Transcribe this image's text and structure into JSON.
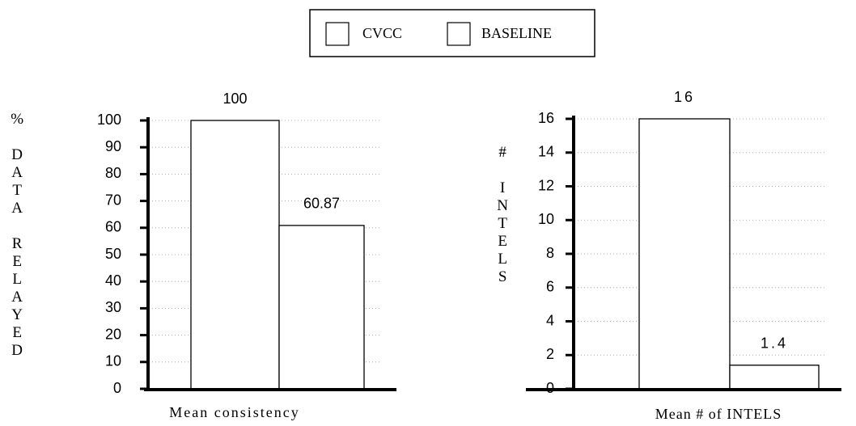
{
  "chart_data": [
    {
      "type": "bar",
      "y_label": "% DATA RELAYED",
      "categories": [
        "Mean consistency"
      ],
      "series": [
        {
          "name": "CVCC",
          "color": "#ffffff",
          "values": [
            100
          ]
        },
        {
          "name": "BASELINE",
          "color": "#ffffff",
          "values": [
            60.87
          ]
        }
      ],
      "ylim": [
        0,
        100
      ],
      "yticks": [
        0,
        10,
        20,
        30,
        40,
        50,
        60,
        70,
        80,
        90,
        100
      ],
      "grid": true
    },
    {
      "type": "bar",
      "y_label": "# INTELS",
      "categories": [
        "Mean # of INTELS"
      ],
      "series": [
        {
          "color": "#ffffff",
          "values": [
            16
          ]
        },
        {
          "color": "#ffffff",
          "values": [
            1.4
          ]
        }
      ],
      "ylim": [
        0,
        16
      ],
      "yticks": [
        0,
        2,
        4,
        6,
        8,
        10,
        12,
        14,
        16
      ],
      "grid": true
    }
  ]
}
